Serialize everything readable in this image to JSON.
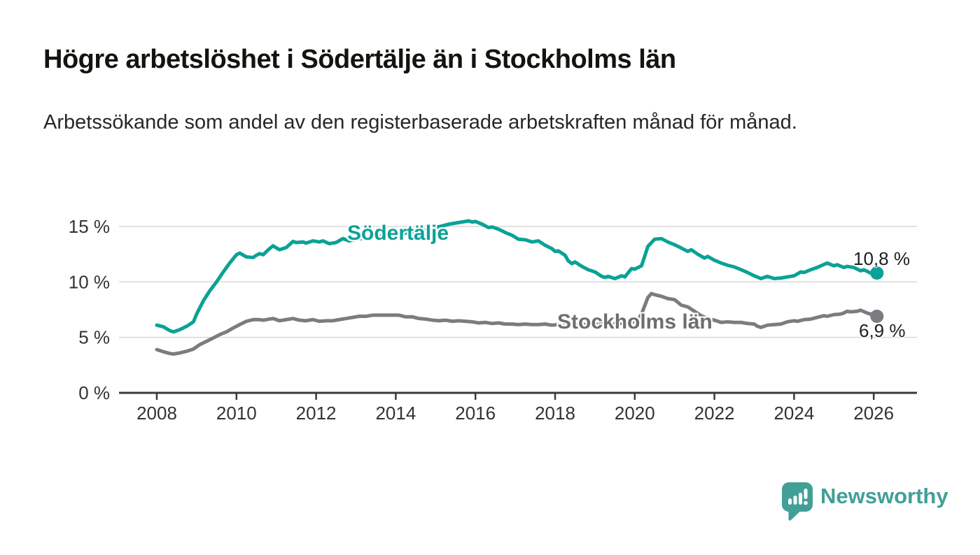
{
  "chart_data": {
    "type": "line",
    "title": "Högre arbetslöshet i Södertälje än i Stockholms län",
    "subtitle": "Arbetssökande som andel av den registerbaserade arbetskraften månad för månad.",
    "grid": true,
    "legend_position": "inline-labels-on-lines",
    "x": {
      "label": "",
      "tick_years": [
        2008,
        2010,
        2012,
        2014,
        2016,
        2018,
        2020,
        2022,
        2024,
        2026
      ],
      "range": [
        2008.0,
        2026.17
      ]
    },
    "y": {
      "label": "",
      "unit": "%",
      "ticks": [
        0,
        5,
        10,
        15
      ],
      "tick_labels": [
        "0 %",
        "5 %",
        "10 %",
        "15 %"
      ],
      "range": [
        0,
        16.5
      ]
    },
    "colors": {
      "grid": "#d9d9d9",
      "axis": "#3a3a3a",
      "tick_text": "#333333"
    },
    "series": [
      {
        "name": "Södertälje",
        "color": "#0aa296",
        "end_label": "10,8 %",
        "latest_value": 10.8,
        "points": [
          [
            2008.0,
            6.1
          ],
          [
            2008.17,
            5.95
          ],
          [
            2008.33,
            5.6
          ],
          [
            2008.42,
            5.5
          ],
          [
            2008.58,
            5.7
          ],
          [
            2008.75,
            6.0
          ],
          [
            2008.92,
            6.4
          ],
          [
            2009.0,
            7.1
          ],
          [
            2009.17,
            8.3
          ],
          [
            2009.33,
            9.2
          ],
          [
            2009.5,
            10.0
          ],
          [
            2009.67,
            10.9
          ],
          [
            2009.83,
            11.7
          ],
          [
            2010.0,
            12.45
          ],
          [
            2010.08,
            12.6
          ],
          [
            2010.25,
            12.25
          ],
          [
            2010.42,
            12.2
          ],
          [
            2010.5,
            12.4
          ],
          [
            2010.58,
            12.55
          ],
          [
            2010.67,
            12.45
          ],
          [
            2010.83,
            13.0
          ],
          [
            2010.92,
            13.25
          ],
          [
            2011.08,
            12.9
          ],
          [
            2011.25,
            13.1
          ],
          [
            2011.42,
            13.65
          ],
          [
            2011.5,
            13.55
          ],
          [
            2011.67,
            13.6
          ],
          [
            2011.75,
            13.5
          ],
          [
            2011.92,
            13.7
          ],
          [
            2012.08,
            13.6
          ],
          [
            2012.17,
            13.7
          ],
          [
            2012.33,
            13.45
          ],
          [
            2012.5,
            13.55
          ],
          [
            2012.67,
            13.9
          ],
          [
            2012.83,
            13.7
          ],
          [
            2013.0,
            13.85
          ],
          [
            2013.25,
            13.95
          ],
          [
            2013.5,
            14.1
          ],
          [
            2013.75,
            14.15
          ],
          [
            2014.0,
            14.3
          ],
          [
            2014.33,
            14.45
          ],
          [
            2014.67,
            14.6
          ],
          [
            2015.0,
            14.9
          ],
          [
            2015.33,
            15.2
          ],
          [
            2015.58,
            15.35
          ],
          [
            2015.83,
            15.5
          ],
          [
            2015.92,
            15.4
          ],
          [
            2016.0,
            15.45
          ],
          [
            2016.17,
            15.2
          ],
          [
            2016.33,
            14.9
          ],
          [
            2016.42,
            14.95
          ],
          [
            2016.58,
            14.75
          ],
          [
            2016.75,
            14.45
          ],
          [
            2016.92,
            14.2
          ],
          [
            2017.08,
            13.85
          ],
          [
            2017.25,
            13.8
          ],
          [
            2017.42,
            13.6
          ],
          [
            2017.58,
            13.7
          ],
          [
            2017.75,
            13.3
          ],
          [
            2017.92,
            13.0
          ],
          [
            2018.0,
            12.75
          ],
          [
            2018.08,
            12.8
          ],
          [
            2018.25,
            12.4
          ],
          [
            2018.33,
            11.9
          ],
          [
            2018.42,
            11.65
          ],
          [
            2018.5,
            11.8
          ],
          [
            2018.67,
            11.4
          ],
          [
            2018.83,
            11.1
          ],
          [
            2019.0,
            10.9
          ],
          [
            2019.17,
            10.5
          ],
          [
            2019.25,
            10.4
          ],
          [
            2019.33,
            10.5
          ],
          [
            2019.5,
            10.3
          ],
          [
            2019.67,
            10.55
          ],
          [
            2019.75,
            10.45
          ],
          [
            2019.92,
            11.2
          ],
          [
            2020.0,
            11.15
          ],
          [
            2020.17,
            11.45
          ],
          [
            2020.33,
            13.2
          ],
          [
            2020.5,
            13.85
          ],
          [
            2020.67,
            13.9
          ],
          [
            2020.83,
            13.6
          ],
          [
            2021.0,
            13.35
          ],
          [
            2021.17,
            13.05
          ],
          [
            2021.33,
            12.75
          ],
          [
            2021.42,
            12.9
          ],
          [
            2021.58,
            12.5
          ],
          [
            2021.75,
            12.15
          ],
          [
            2021.83,
            12.3
          ],
          [
            2022.0,
            11.95
          ],
          [
            2022.17,
            11.7
          ],
          [
            2022.33,
            11.5
          ],
          [
            2022.5,
            11.35
          ],
          [
            2022.67,
            11.1
          ],
          [
            2022.83,
            10.85
          ],
          [
            2023.0,
            10.55
          ],
          [
            2023.17,
            10.3
          ],
          [
            2023.33,
            10.5
          ],
          [
            2023.5,
            10.3
          ],
          [
            2023.67,
            10.35
          ],
          [
            2023.83,
            10.45
          ],
          [
            2024.0,
            10.55
          ],
          [
            2024.17,
            10.9
          ],
          [
            2024.25,
            10.85
          ],
          [
            2024.42,
            11.1
          ],
          [
            2024.58,
            11.3
          ],
          [
            2024.83,
            11.7
          ],
          [
            2025.0,
            11.45
          ],
          [
            2025.08,
            11.55
          ],
          [
            2025.25,
            11.3
          ],
          [
            2025.33,
            11.4
          ],
          [
            2025.5,
            11.3
          ],
          [
            2025.67,
            11.0
          ],
          [
            2025.75,
            11.1
          ],
          [
            2025.92,
            10.8
          ],
          [
            2026.0,
            10.95
          ],
          [
            2026.08,
            10.8
          ]
        ]
      },
      {
        "name": "Stockholms län",
        "color": "#7b7b80",
        "end_label": "6,9 %",
        "latest_value": 6.9,
        "points": [
          [
            2008.0,
            3.9
          ],
          [
            2008.17,
            3.7
          ],
          [
            2008.33,
            3.55
          ],
          [
            2008.42,
            3.5
          ],
          [
            2008.58,
            3.6
          ],
          [
            2008.75,
            3.75
          ],
          [
            2008.92,
            3.95
          ],
          [
            2009.08,
            4.35
          ],
          [
            2009.25,
            4.65
          ],
          [
            2009.42,
            4.95
          ],
          [
            2009.58,
            5.25
          ],
          [
            2009.75,
            5.5
          ],
          [
            2009.92,
            5.85
          ],
          [
            2010.08,
            6.15
          ],
          [
            2010.25,
            6.45
          ],
          [
            2010.42,
            6.6
          ],
          [
            2010.58,
            6.6
          ],
          [
            2010.67,
            6.55
          ],
          [
            2010.83,
            6.65
          ],
          [
            2010.92,
            6.7
          ],
          [
            2011.08,
            6.5
          ],
          [
            2011.25,
            6.6
          ],
          [
            2011.42,
            6.7
          ],
          [
            2011.58,
            6.55
          ],
          [
            2011.75,
            6.5
          ],
          [
            2011.92,
            6.6
          ],
          [
            2012.08,
            6.45
          ],
          [
            2012.25,
            6.5
          ],
          [
            2012.42,
            6.5
          ],
          [
            2012.58,
            6.6
          ],
          [
            2012.75,
            6.7
          ],
          [
            2012.92,
            6.8
          ],
          [
            2013.08,
            6.9
          ],
          [
            2013.25,
            6.9
          ],
          [
            2013.42,
            7.0
          ],
          [
            2013.58,
            7.0
          ],
          [
            2013.75,
            7.0
          ],
          [
            2013.92,
            7.0
          ],
          [
            2014.08,
            7.0
          ],
          [
            2014.25,
            6.85
          ],
          [
            2014.42,
            6.85
          ],
          [
            2014.58,
            6.7
          ],
          [
            2014.75,
            6.65
          ],
          [
            2014.92,
            6.55
          ],
          [
            2015.08,
            6.5
          ],
          [
            2015.25,
            6.55
          ],
          [
            2015.42,
            6.45
          ],
          [
            2015.58,
            6.5
          ],
          [
            2015.75,
            6.45
          ],
          [
            2015.92,
            6.4
          ],
          [
            2016.08,
            6.3
          ],
          [
            2016.25,
            6.35
          ],
          [
            2016.42,
            6.25
          ],
          [
            2016.58,
            6.3
          ],
          [
            2016.75,
            6.2
          ],
          [
            2016.92,
            6.2
          ],
          [
            2017.08,
            6.15
          ],
          [
            2017.25,
            6.2
          ],
          [
            2017.42,
            6.15
          ],
          [
            2017.58,
            6.15
          ],
          [
            2017.75,
            6.2
          ],
          [
            2017.92,
            6.1
          ],
          [
            2018.08,
            6.15
          ],
          [
            2018.25,
            6.1
          ],
          [
            2018.42,
            6.15
          ],
          [
            2018.58,
            6.1
          ],
          [
            2018.75,
            6.15
          ],
          [
            2018.92,
            6.2
          ],
          [
            2019.08,
            6.15
          ],
          [
            2019.25,
            6.25
          ],
          [
            2019.42,
            6.2
          ],
          [
            2019.58,
            6.25
          ],
          [
            2019.75,
            6.3
          ],
          [
            2019.92,
            6.35
          ],
          [
            2020.08,
            6.6
          ],
          [
            2020.17,
            7.1
          ],
          [
            2020.33,
            8.6
          ],
          [
            2020.42,
            8.95
          ],
          [
            2020.5,
            8.85
          ],
          [
            2020.67,
            8.7
          ],
          [
            2020.83,
            8.5
          ],
          [
            2021.0,
            8.4
          ],
          [
            2021.17,
            7.9
          ],
          [
            2021.33,
            7.75
          ],
          [
            2021.5,
            7.35
          ],
          [
            2021.67,
            6.95
          ],
          [
            2021.83,
            6.7
          ],
          [
            2022.0,
            6.55
          ],
          [
            2022.17,
            6.35
          ],
          [
            2022.33,
            6.4
          ],
          [
            2022.5,
            6.35
          ],
          [
            2022.67,
            6.35
          ],
          [
            2022.83,
            6.25
          ],
          [
            2023.0,
            6.2
          ],
          [
            2023.08,
            6.0
          ],
          [
            2023.17,
            5.9
          ],
          [
            2023.33,
            6.1
          ],
          [
            2023.5,
            6.15
          ],
          [
            2023.67,
            6.2
          ],
          [
            2023.83,
            6.4
          ],
          [
            2024.0,
            6.5
          ],
          [
            2024.08,
            6.45
          ],
          [
            2024.25,
            6.6
          ],
          [
            2024.42,
            6.65
          ],
          [
            2024.58,
            6.8
          ],
          [
            2024.75,
            6.95
          ],
          [
            2024.83,
            6.9
          ],
          [
            2025.0,
            7.05
          ],
          [
            2025.17,
            7.1
          ],
          [
            2025.25,
            7.2
          ],
          [
            2025.33,
            7.35
          ],
          [
            2025.42,
            7.3
          ],
          [
            2025.58,
            7.35
          ],
          [
            2025.67,
            7.45
          ],
          [
            2025.83,
            7.2
          ],
          [
            2025.92,
            7.1
          ],
          [
            2026.0,
            7.15
          ],
          [
            2026.08,
            6.9
          ]
        ]
      }
    ]
  },
  "branding": {
    "logo_text": "Newsworthy",
    "color": "#41a096"
  }
}
